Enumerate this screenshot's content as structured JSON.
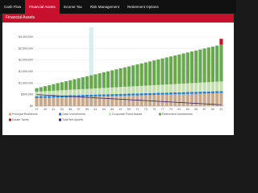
{
  "nav": {
    "tabs": [
      "Cash Flow",
      "Financial Assets",
      "Income Tax",
      "Risk Management",
      "Retirement Options"
    ]
  },
  "header": {
    "title": "Financial Assets"
  },
  "chart_data": {
    "type": "bar",
    "stacked": true,
    "categories": [
      "47",
      null,
      "49",
      null,
      "51",
      null,
      "53",
      null,
      "55",
      null,
      "57",
      null,
      "59",
      null,
      "61",
      null,
      "63",
      null,
      "65",
      null,
      "67",
      null,
      "69",
      null,
      "71",
      null,
      "73",
      null,
      "75",
      null,
      "77",
      null,
      "79",
      null,
      "81",
      null,
      "83",
      null,
      "85",
      null,
      "87",
      null,
      "89",
      null,
      "91"
    ],
    "series": [
      {
        "name": "Principal Residence",
        "color": "#c8a98e",
        "values": [
          350000,
          355000,
          360000,
          365000,
          370000,
          375000,
          380000,
          385000,
          390000,
          395000,
          400000,
          405000,
          410000,
          415000,
          420000,
          425000,
          430000,
          435000,
          440000,
          445000,
          450000,
          455000,
          460000,
          465000,
          470000,
          475000,
          480000,
          485000,
          490000,
          495000,
          500000,
          505000,
          510000,
          515000,
          520000,
          525000,
          530000,
          535000,
          540000,
          545000,
          550000,
          555000,
          560000,
          565000,
          570000
        ]
      },
      {
        "name": "Cash Investments",
        "color": "#1f7fd0",
        "values": [
          80000,
          80000,
          80000,
          80000,
          80000,
          80000,
          80000,
          80000,
          80000,
          80000,
          80000,
          80000,
          80000,
          80000,
          80000,
          80000,
          80000,
          80000,
          80000,
          80000,
          80000,
          80000,
          80000,
          80000,
          80000,
          80000,
          80000,
          80000,
          80000,
          80000,
          80000,
          80000,
          80000,
          80000,
          80000,
          80000,
          80000,
          80000,
          80000,
          80000,
          80000,
          80000,
          80000,
          80000,
          80000
        ]
      },
      {
        "name": "Corporate Fixed Assets",
        "color": "#c5dfb0",
        "values": [
          200000,
          205000,
          210000,
          215000,
          220000,
          225000,
          230000,
          235000,
          240000,
          245000,
          250000,
          255000,
          260000,
          265000,
          270000,
          275000,
          280000,
          285000,
          290000,
          295000,
          300000,
          305000,
          310000,
          315000,
          320000,
          325000,
          330000,
          335000,
          340000,
          345000,
          350000,
          355000,
          360000,
          365000,
          370000,
          375000,
          380000,
          385000,
          390000,
          395000,
          400000,
          405000,
          410000,
          415000,
          420000
        ]
      },
      {
        "name": "Retirement Investments",
        "color": "#6aa84f",
        "values": [
          150000,
          183000,
          216000,
          249000,
          282000,
          315000,
          348000,
          381000,
          414000,
          447000,
          480000,
          513000,
          546000,
          579000,
          612000,
          645000,
          678000,
          711000,
          744000,
          777000,
          810000,
          843000,
          876000,
          909000,
          942000,
          975000,
          1008000,
          1041000,
          1074000,
          1107000,
          1140000,
          1173000,
          1206000,
          1239000,
          1272000,
          1305000,
          1338000,
          1371000,
          1404000,
          1437000,
          1470000,
          1503000,
          1536000,
          1569000,
          1602000
        ]
      },
      {
        "name": "Estate Taxes",
        "color": "#c8102e",
        "values": [
          0,
          0,
          0,
          0,
          0,
          0,
          0,
          0,
          0,
          0,
          0,
          0,
          0,
          0,
          0,
          0,
          0,
          0,
          0,
          0,
          0,
          0,
          0,
          0,
          0,
          0,
          0,
          0,
          0,
          0,
          0,
          0,
          0,
          0,
          0,
          0,
          0,
          0,
          0,
          0,
          0,
          0,
          0,
          0,
          250000
        ]
      },
      {
        "name": "Total Net Assets",
        "color": "#3b2a6b",
        "line": true,
        "values": [
          500000,
          490000,
          480000,
          470000,
          460000,
          450000,
          440000,
          430000,
          420000,
          410000,
          400000,
          390000,
          380000,
          370000,
          360000,
          350000,
          340000,
          330000,
          320000,
          310000,
          300000,
          290000,
          280000,
          270000,
          260000,
          250000,
          240000,
          230000,
          220000,
          210000,
          200000,
          190000,
          180000,
          170000,
          160000,
          150000,
          140000,
          130000,
          120000,
          110000,
          100000,
          90000,
          80000,
          70000,
          60000
        ]
      }
    ],
    "ylim": [
      0,
      3000000
    ],
    "yticks": [
      {
        "value": 0,
        "label": "$0"
      },
      {
        "value": 500000,
        "label": "$500,000"
      },
      {
        "value": 1000000,
        "label": "$1,000,000"
      },
      {
        "value": 1500000,
        "label": "$1,500,000"
      },
      {
        "value": 2000000,
        "label": "$2,000,000"
      },
      {
        "value": 2500000,
        "label": "$2,500,000"
      },
      {
        "value": 3000000,
        "label": "$3,000,000"
      }
    ],
    "grid": true
  }
}
